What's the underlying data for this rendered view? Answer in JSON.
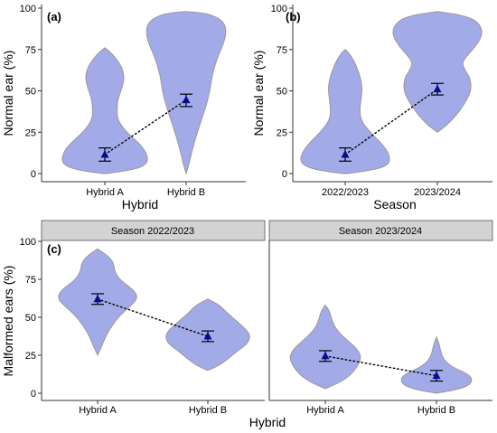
{
  "colors": {
    "violin_fill": "#a3aae8",
    "violin_stroke": "#9a9a9a",
    "mean_point": "#0a0a8c",
    "errorbar": "#000000",
    "strip_fill": "#d3d3d3",
    "strip_stroke": "#555555",
    "axis": "#333333"
  },
  "chart_data": [
    {
      "type": "violin",
      "panel_label": "(a)",
      "xlabel": "Hybrid",
      "ylabel": "Normal ear (%)",
      "ylim": [
        0,
        100
      ],
      "yticks": [
        0,
        25,
        50,
        75,
        100
      ],
      "grid": false,
      "categories": [
        "Hybrid A",
        "Hybrid B"
      ],
      "series": [
        {
          "mean": [
            11.5,
            44.5
          ],
          "error_low": [
            7.5,
            40.5
          ],
          "error_high": [
            15.5,
            48.0
          ],
          "range": [
            [
              1,
              76
            ],
            [
              0,
              98
            ]
          ],
          "density_profile": [
            [
              [
                0,
                0.05
              ],
              [
                2,
                0.6
              ],
              [
                5,
                0.95
              ],
              [
                10,
                1.0
              ],
              [
                17,
                0.85
              ],
              [
                25,
                0.5
              ],
              [
                32,
                0.3
              ],
              [
                38,
                0.28
              ],
              [
                45,
                0.3
              ],
              [
                52,
                0.4
              ],
              [
                58,
                0.45
              ],
              [
                64,
                0.4
              ],
              [
                70,
                0.25
              ],
              [
                74,
                0.1
              ],
              [
                76,
                0
              ]
            ],
            [
              [
                0,
                0
              ],
              [
                5,
                0.06
              ],
              [
                12,
                0.12
              ],
              [
                20,
                0.2
              ],
              [
                30,
                0.32
              ],
              [
                40,
                0.45
              ],
              [
                50,
                0.55
              ],
              [
                60,
                0.6
              ],
              [
                70,
                0.72
              ],
              [
                78,
                0.85
              ],
              [
                84,
                0.92
              ],
              [
                90,
                0.9
              ],
              [
                94,
                0.75
              ],
              [
                97,
                0.45
              ],
              [
                98,
                0
              ]
            ]
          ]
        }
      ]
    },
    {
      "type": "violin",
      "panel_label": "(b)",
      "xlabel": "Season",
      "ylabel": "Normal ear (%)",
      "ylim": [
        0,
        100
      ],
      "yticks": [
        0,
        25,
        50,
        75,
        100
      ],
      "grid": false,
      "categories": [
        "2022/2023",
        "2023/2024"
      ],
      "series": [
        {
          "mean": [
            11.5,
            51.0
          ],
          "error_low": [
            7.5,
            47.5
          ],
          "error_high": [
            15.5,
            54.5
          ],
          "range": [
            [
              1,
              75
            ],
            [
              25,
              98
            ]
          ],
          "density_profile": [
            [
              [
                0,
                0.05
              ],
              [
                2,
                0.6
              ],
              [
                5,
                0.95
              ],
              [
                10,
                1.0
              ],
              [
                17,
                0.85
              ],
              [
                25,
                0.55
              ],
              [
                32,
                0.35
              ],
              [
                38,
                0.32
              ],
              [
                45,
                0.35
              ],
              [
                52,
                0.38
              ],
              [
                60,
                0.32
              ],
              [
                68,
                0.2
              ],
              [
                73,
                0.08
              ],
              [
                75,
                0
              ]
            ],
            [
              [
                25,
                0
              ],
              [
                28,
                0.15
              ],
              [
                33,
                0.35
              ],
              [
                40,
                0.55
              ],
              [
                47,
                0.7
              ],
              [
                52,
                0.75
              ],
              [
                58,
                0.72
              ],
              [
                63,
                0.6
              ],
              [
                67,
                0.55
              ],
              [
                71,
                0.65
              ],
              [
                77,
                0.85
              ],
              [
                84,
                1.0
              ],
              [
                90,
                0.95
              ],
              [
                95,
                0.7
              ],
              [
                98,
                0
              ]
            ]
          ]
        }
      ]
    },
    {
      "type": "violin",
      "panel_label": "(c)",
      "xlabel": "Hybrid",
      "ylabel": "Malformed ears (%)",
      "ylim": [
        0,
        100
      ],
      "yticks": [
        0,
        25,
        50,
        75,
        100
      ],
      "grid": false,
      "facets": [
        "Season 2022/2023",
        "Season 2023/2024"
      ],
      "categories": [
        "Hybrid A",
        "Hybrid B"
      ],
      "series": [
        {
          "name": "Season 2022/2023",
          "mean": [
            62.0,
            37.5
          ],
          "error_low": [
            58.5,
            34.0
          ],
          "error_high": [
            65.5,
            41.0
          ],
          "range": [
            [
              25,
              95
            ],
            [
              15,
              62
            ]
          ],
          "density_profile": [
            [
              [
                25,
                0
              ],
              [
                30,
                0.08
              ],
              [
                38,
                0.2
              ],
              [
                45,
                0.35
              ],
              [
                52,
                0.55
              ],
              [
                58,
                0.8
              ],
              [
                63,
                0.95
              ],
              [
                68,
                0.85
              ],
              [
                74,
                0.55
              ],
              [
                80,
                0.4
              ],
              [
                86,
                0.38
              ],
              [
                91,
                0.22
              ],
              [
                95,
                0
              ]
            ],
            [
              [
                15,
                0
              ],
              [
                18,
                0.25
              ],
              [
                22,
                0.45
              ],
              [
                28,
                0.7
              ],
              [
                33,
                0.95
              ],
              [
                38,
                1.0
              ],
              [
                42,
                0.9
              ],
              [
                47,
                0.7
              ],
              [
                53,
                0.45
              ],
              [
                58,
                0.28
              ],
              [
                62,
                0
              ]
            ]
          ]
        },
        {
          "name": "Season 2023/2024",
          "mean": [
            24.5,
            11.5
          ],
          "error_low": [
            21.0,
            8.0
          ],
          "error_high": [
            28.0,
            15.0
          ],
          "range": [
            [
              3,
              58
            ],
            [
              0,
              37
            ]
          ],
          "density_profile": [
            [
              [
                3,
                0
              ],
              [
                7,
                0.4
              ],
              [
                12,
                0.7
              ],
              [
                18,
                0.9
              ],
              [
                24,
                1.0
              ],
              [
                30,
                0.85
              ],
              [
                36,
                0.55
              ],
              [
                42,
                0.3
              ],
              [
                48,
                0.18
              ],
              [
                54,
                0.12
              ],
              [
                58,
                0
              ]
            ],
            [
              [
                0,
                0
              ],
              [
                2,
                0.5
              ],
              [
                5,
                0.9
              ],
              [
                9,
                1.0
              ],
              [
                13,
                0.85
              ],
              [
                17,
                0.45
              ],
              [
                22,
                0.2
              ],
              [
                27,
                0.12
              ],
              [
                32,
                0.08
              ],
              [
                37,
                0
              ]
            ]
          ]
        }
      ]
    }
  ]
}
